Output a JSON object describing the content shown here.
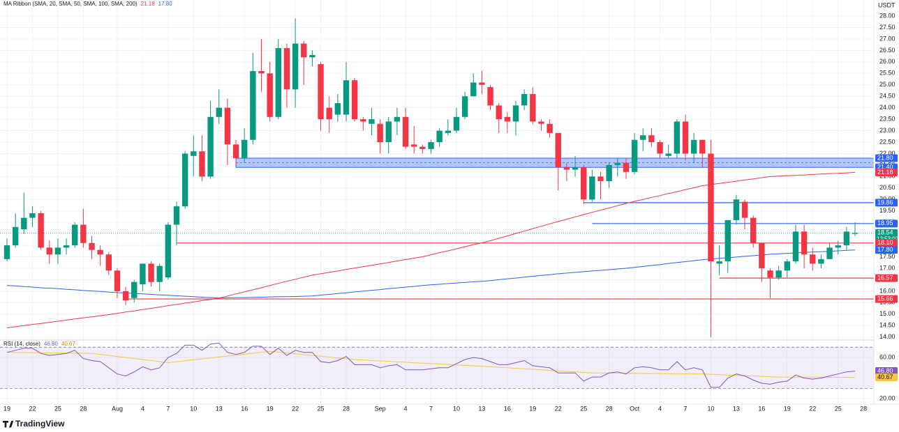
{
  "chart_data": {
    "type": "candlestick",
    "unit": "USDT",
    "up_color": "#089981",
    "down_color": "#f23645",
    "grid": true,
    "categories": [
      "19",
      null,
      null,
      "22",
      null,
      null,
      "25",
      null,
      null,
      "28",
      null,
      null,
      null,
      "Aug",
      null,
      null,
      "4",
      null,
      null,
      "7",
      null,
      null,
      "10",
      null,
      null,
      "13",
      null,
      null,
      "16",
      null,
      null,
      "19",
      null,
      null,
      "22",
      null,
      null,
      "25",
      null,
      null,
      "28",
      null,
      null,
      null,
      "Sep",
      null,
      null,
      "4",
      null,
      null,
      "7",
      null,
      null,
      "10",
      null,
      null,
      "13",
      null,
      null,
      "16",
      null,
      null,
      "19",
      null,
      null,
      "22",
      null,
      null,
      "25",
      null,
      null,
      "28",
      null,
      null,
      "Oct",
      null,
      null,
      "4",
      null,
      null,
      "7",
      null,
      null,
      "10",
      null,
      null,
      "13",
      null,
      null,
      "16",
      null,
      null,
      "19",
      null,
      null,
      "22",
      null,
      null,
      "25",
      null,
      null,
      "28"
    ],
    "ohlc": [
      [
        17.4,
        18.3,
        17.3,
        18.0
      ],
      [
        18.0,
        19.4,
        17.9,
        18.8
      ],
      [
        18.7,
        20.3,
        18.5,
        19.2
      ],
      [
        19.2,
        19.7,
        18.8,
        19.4
      ],
      [
        19.4,
        19.5,
        17.8,
        17.9
      ],
      [
        17.9,
        18.2,
        17.2,
        17.6
      ],
      [
        17.6,
        18.3,
        17.2,
        17.9
      ],
      [
        17.9,
        18.3,
        17.6,
        18.0
      ],
      [
        18.0,
        19.0,
        17.9,
        18.9
      ],
      [
        18.9,
        19.6,
        17.9,
        18.1
      ],
      [
        18.1,
        18.4,
        17.4,
        17.8
      ],
      [
        17.8,
        18.0,
        17.1,
        17.6
      ],
      [
        17.6,
        17.7,
        16.7,
        16.9
      ],
      [
        16.9,
        17.0,
        15.7,
        16.0
      ],
      [
        16.0,
        16.2,
        15.4,
        15.6
      ],
      [
        15.7,
        16.5,
        15.5,
        16.4
      ],
      [
        16.3,
        17.2,
        16.0,
        17.2
      ],
      [
        17.2,
        17.3,
        16.2,
        16.4
      ],
      [
        16.4,
        17.2,
        16.0,
        17.1
      ],
      [
        16.6,
        19.0,
        16.5,
        18.9
      ],
      [
        18.9,
        19.9,
        18.0,
        19.7
      ],
      [
        19.7,
        22.1,
        19.6,
        22.0
      ],
      [
        21.9,
        22.8,
        21.0,
        22.1
      ],
      [
        22.1,
        22.8,
        20.8,
        21.0
      ],
      [
        21.0,
        24.3,
        20.9,
        23.6
      ],
      [
        23.6,
        24.8,
        23.3,
        24.0
      ],
      [
        24.0,
        24.4,
        21.5,
        22.4
      ],
      [
        22.4,
        22.6,
        21.5,
        21.8
      ],
      [
        21.8,
        23.1,
        21.6,
        22.6
      ],
      [
        22.6,
        26.4,
        22.4,
        25.6
      ],
      [
        25.6,
        27.0,
        24.7,
        25.5
      ],
      [
        25.5,
        26.0,
        23.4,
        23.6
      ],
      [
        23.6,
        27.0,
        23.5,
        26.6
      ],
      [
        26.6,
        26.8,
        24.0,
        24.8
      ],
      [
        24.8,
        27.9,
        24.0,
        26.8
      ],
      [
        26.8,
        26.9,
        25.0,
        26.2
      ],
      [
        26.2,
        26.5,
        25.8,
        26.3
      ],
      [
        25.9,
        26.0,
        23.0,
        23.5
      ],
      [
        24.0,
        24.5,
        22.9,
        23.5
      ],
      [
        23.7,
        24.6,
        23.4,
        24.2
      ],
      [
        23.7,
        26.0,
        23.4,
        25.2
      ],
      [
        25.2,
        25.3,
        23.4,
        23.5
      ],
      [
        23.5,
        23.6,
        23.0,
        23.4
      ],
      [
        23.3,
        24.0,
        22.8,
        23.5
      ],
      [
        23.3,
        23.5,
        22.0,
        22.5
      ],
      [
        22.5,
        23.6,
        22.0,
        23.4
      ],
      [
        23.4,
        24.0,
        22.8,
        23.6
      ],
      [
        23.6,
        24.0,
        22.2,
        22.3
      ],
      [
        22.4,
        23.2,
        22.0,
        22.3
      ],
      [
        22.3,
        22.4,
        22.0,
        22.2
      ],
      [
        22.2,
        22.6,
        22.0,
        22.5
      ],
      [
        22.5,
        23.1,
        22.3,
        23.0
      ],
      [
        22.9,
        23.5,
        22.8,
        23.0
      ],
      [
        23.0,
        24.0,
        22.9,
        23.6
      ],
      [
        23.6,
        24.7,
        23.5,
        24.5
      ],
      [
        24.5,
        25.5,
        24.5,
        25.1
      ],
      [
        25.1,
        25.6,
        24.6,
        25.0
      ],
      [
        24.9,
        25.0,
        23.9,
        24.1
      ],
      [
        24.1,
        24.2,
        22.9,
        23.5
      ],
      [
        23.6,
        23.8,
        22.9,
        23.4
      ],
      [
        23.4,
        24.3,
        22.8,
        24.1
      ],
      [
        24.1,
        24.8,
        23.9,
        24.6
      ],
      [
        24.6,
        24.9,
        23.3,
        23.4
      ],
      [
        23.4,
        23.5,
        23.0,
        23.3
      ],
      [
        23.3,
        23.5,
        22.7,
        22.9
      ],
      [
        22.9,
        22.9,
        20.4,
        21.4
      ],
      [
        21.4,
        21.6,
        20.8,
        21.3
      ],
      [
        21.3,
        21.9,
        21.0,
        21.4
      ],
      [
        21.4,
        21.5,
        19.8,
        20.0
      ],
      [
        20.0,
        21.3,
        19.9,
        21.0
      ],
      [
        21.0,
        21.2,
        20.0,
        20.8
      ],
      [
        20.8,
        21.6,
        20.5,
        21.5
      ],
      [
        21.5,
        21.8,
        21.0,
        21.6
      ],
      [
        21.6,
        21.8,
        20.9,
        21.2
      ],
      [
        21.2,
        22.9,
        21.1,
        22.6
      ],
      [
        22.6,
        23.1,
        22.1,
        22.8
      ],
      [
        22.8,
        23.1,
        22.3,
        22.5
      ],
      [
        22.5,
        22.6,
        21.8,
        22.0
      ],
      [
        21.9,
        22.4,
        21.8,
        22.0
      ],
      [
        22.0,
        23.5,
        21.8,
        23.4
      ],
      [
        23.4,
        23.7,
        21.7,
        22.0
      ],
      [
        22.0,
        22.9,
        21.6,
        22.6
      ],
      [
        22.6,
        22.6,
        21.4,
        22.0
      ],
      [
        22.0,
        22.6,
        14.0,
        17.3
      ],
      [
        17.2,
        18.0,
        16.7,
        17.3
      ],
      [
        17.3,
        19.1,
        16.8,
        19.1
      ],
      [
        19.1,
        20.2,
        18.9,
        20.0
      ],
      [
        19.9,
        20.0,
        18.7,
        19.2
      ],
      [
        19.2,
        19.3,
        17.9,
        18.1
      ],
      [
        18.1,
        18.1,
        16.4,
        17.0
      ],
      [
        16.9,
        17.0,
        15.7,
        16.6
      ],
      [
        16.6,
        17.1,
        16.5,
        16.9
      ],
      [
        16.9,
        17.4,
        16.6,
        17.3
      ],
      [
        17.3,
        18.9,
        17.2,
        18.6
      ],
      [
        18.6,
        18.9,
        17.0,
        17.6
      ],
      [
        17.6,
        17.9,
        16.9,
        17.2
      ],
      [
        17.2,
        17.6,
        17.0,
        17.4
      ],
      [
        17.4,
        18.1,
        17.4,
        17.9
      ],
      [
        17.9,
        18.2,
        17.6,
        18.0
      ],
      [
        18.0,
        18.8,
        17.8,
        18.6
      ],
      [
        18.5,
        19.0,
        18.4,
        18.54
      ],
      null
    ],
    "overlays": [
      {
        "color": "#f23645",
        "values": [
          14.4,
          14.45,
          14.5,
          14.55,
          14.59,
          14.64,
          14.69,
          14.74,
          14.79,
          14.84,
          14.88,
          14.93,
          14.98,
          15.03,
          15.09,
          15.14,
          15.2,
          15.25,
          15.31,
          15.37,
          15.42,
          15.48,
          15.53,
          15.59,
          15.64,
          15.7,
          15.79,
          15.88,
          15.97,
          16.06,
          16.15,
          16.25,
          16.34,
          16.43,
          16.52,
          16.61,
          16.7,
          16.76,
          16.82,
          16.88,
          16.95,
          17.01,
          17.07,
          17.13,
          17.19,
          17.25,
          17.32,
          17.38,
          17.44,
          17.5,
          17.59,
          17.68,
          17.76,
          17.85,
          17.94,
          18.03,
          18.11,
          18.2,
          18.31,
          18.41,
          18.52,
          18.62,
          18.73,
          18.83,
          18.94,
          19.04,
          19.14,
          19.24,
          19.34,
          19.44,
          19.53,
          19.63,
          19.73,
          19.83,
          19.92,
          20.0,
          20.09,
          20.17,
          20.26,
          20.34,
          20.43,
          20.51,
          20.6,
          20.65,
          20.7,
          20.75,
          20.8,
          20.85,
          20.9,
          20.95,
          21.0,
          21.02,
          21.04,
          21.05,
          21.07,
          21.09,
          21.11,
          21.13,
          21.14,
          21.16,
          21.18,
          null
        ]
      },
      {
        "color": "#2962ff",
        "values": [
          16.25,
          16.23,
          16.2,
          16.18,
          16.15,
          16.13,
          16.11,
          16.08,
          16.06,
          16.03,
          16.01,
          15.99,
          15.96,
          15.94,
          15.92,
          15.9,
          15.88,
          15.86,
          15.84,
          15.82,
          15.8,
          15.78,
          15.76,
          15.74,
          15.72,
          15.7,
          15.71,
          15.72,
          15.72,
          15.73,
          15.74,
          15.75,
          15.76,
          15.76,
          15.77,
          15.78,
          15.79,
          15.83,
          15.86,
          15.9,
          15.93,
          15.97,
          16.0,
          16.04,
          16.07,
          16.11,
          16.14,
          16.18,
          16.21,
          16.25,
          16.28,
          16.3,
          16.33,
          16.36,
          16.38,
          16.41,
          16.43,
          16.46,
          16.5,
          16.54,
          16.57,
          16.61,
          16.65,
          16.69,
          16.72,
          16.76,
          16.79,
          16.82,
          16.85,
          16.88,
          16.91,
          16.94,
          16.97,
          17.0,
          17.04,
          17.08,
          17.12,
          17.16,
          17.21,
          17.25,
          17.29,
          17.33,
          17.37,
          17.4,
          17.43,
          17.46,
          17.49,
          17.52,
          17.55,
          17.58,
          17.61,
          17.63,
          17.65,
          17.67,
          17.69,
          17.71,
          17.72,
          17.74,
          17.76,
          17.78,
          17.8,
          null
        ]
      }
    ],
    "indicator_legend": {
      "title": "MA Ribbon (SMA, 20, SMA, 50, SMA, 100, SMA, 200)",
      "values": [
        "21.18",
        "17.80"
      ]
    },
    "ylim": [
      13.9,
      28.7
    ],
    "yticks": [
      {
        "value": 14,
        "label": "14.00"
      },
      {
        "value": 14.5,
        "label": "14.50"
      },
      {
        "value": 15,
        "label": "15.00"
      },
      {
        "value": 15.5,
        "label": "15.50"
      },
      {
        "value": 16,
        "label": "16.00"
      },
      {
        "value": 16.5,
        "label": "16.50"
      },
      {
        "value": 17,
        "label": "17.00"
      },
      {
        "value": 17.5,
        "label": "17.50"
      },
      {
        "value": 18,
        "label": "18.00"
      },
      {
        "value": 18.5,
        "label": "18.50"
      },
      {
        "value": 19,
        "label": "19.00"
      },
      {
        "value": 19.5,
        "label": "19.50"
      },
      {
        "value": 20,
        "label": "20.00"
      },
      {
        "value": 20.5,
        "label": "20.50"
      },
      {
        "value": 21,
        "label": "21.00"
      },
      {
        "value": 21.5,
        "label": "21.50"
      },
      {
        "value": 22,
        "label": "22.00"
      },
      {
        "value": 22.5,
        "label": "22.50"
      },
      {
        "value": 23,
        "label": "23.00"
      },
      {
        "value": 23.5,
        "label": "23.50"
      },
      {
        "value": 24,
        "label": "24.00"
      },
      {
        "value": 24.5,
        "label": "24.50"
      },
      {
        "value": 25,
        "label": "25.00"
      },
      {
        "value": 25.5,
        "label": "25.50"
      },
      {
        "value": 26,
        "label": "26.00"
      },
      {
        "value": 26.5,
        "label": "26.50"
      },
      {
        "value": 27,
        "label": "27.00"
      },
      {
        "value": 27.5,
        "label": "27.50"
      },
      {
        "value": 28,
        "label": "28.00"
      }
    ],
    "price_labels": [
      {
        "value": 21.8,
        "label": "21.80",
        "color": "#2962ff"
      },
      {
        "value": 21.4,
        "label": "21.40",
        "color": "#2962ff"
      },
      {
        "value": 21.18,
        "label": "21.18",
        "color": "#f23645"
      },
      {
        "value": 19.86,
        "label": "19.86",
        "color": "#2962ff"
      },
      {
        "value": 18.95,
        "label": "18.95",
        "color": "#2962ff"
      },
      {
        "value": 18.54,
        "label": "18.54",
        "color": "#089981"
      },
      {
        "value": 18.1,
        "label": "18.10",
        "color": "#f23645"
      },
      {
        "value": 17.8,
        "label": "17.80",
        "color": "#2962ff"
      },
      {
        "value": 16.57,
        "label": "16.57",
        "color": "#f23645"
      },
      {
        "value": 15.66,
        "label": "15.66",
        "color": "#f23645"
      }
    ],
    "countdown": "12:53:02",
    "rsi": {
      "title": "RSI (14, close)",
      "legend_values": [
        "46.80",
        "40.67"
      ],
      "color": "#7e57c2",
      "ma_color": "#f7c744",
      "ylim": [
        16,
        77
      ],
      "yticks": [
        {
          "value": 60,
          "label": "60.00"
        },
        {
          "value": 20,
          "label": "20.00"
        }
      ],
      "band": [
        30,
        70
      ],
      "values": [
        65,
        67,
        69,
        69,
        64,
        62,
        63,
        64,
        67,
        59,
        57,
        56,
        50,
        44,
        42,
        46,
        51,
        48,
        50,
        60,
        64,
        72,
        72,
        67,
        73,
        74,
        65,
        63,
        65,
        71,
        71,
        63,
        69,
        62,
        67,
        65,
        65,
        56,
        55,
        57,
        61,
        53,
        53,
        53,
        50,
        52,
        53,
        48,
        48,
        48,
        49,
        50,
        50,
        54,
        58,
        60,
        59,
        56,
        53,
        53,
        55,
        57,
        52,
        51,
        50,
        45,
        45,
        45,
        37,
        41,
        41,
        45,
        46,
        44,
        50,
        51,
        50,
        48,
        48,
        56,
        48,
        50,
        48,
        31,
        31,
        40,
        44,
        42,
        38,
        35,
        34,
        36,
        37,
        43,
        40,
        39,
        40,
        42,
        44,
        46,
        46.8,
        null
      ],
      "ma_values": [
        65,
        64.9,
        64.8,
        64.7,
        64.6,
        64.5,
        64.4,
        64.3,
        64.2,
        64.1,
        64,
        63,
        62,
        61,
        60,
        59,
        58,
        57,
        56,
        55,
        55.9,
        56.8,
        57.8,
        58.7,
        59.6,
        60.5,
        61.4,
        62.3,
        63.2,
        64.2,
        65.1,
        66,
        65.2,
        64.4,
        63.6,
        62.8,
        62,
        61.2,
        60.4,
        59.6,
        58.8,
        58,
        57.6,
        57.1,
        56.7,
        56.3,
        55.8,
        55.4,
        54.9,
        54.5,
        54.1,
        53.6,
        53.2,
        52.8,
        52.3,
        51.9,
        51.4,
        51,
        50.5,
        50,
        49.5,
        49,
        48.5,
        48,
        47.5,
        47,
        46.5,
        46,
        45.5,
        45,
        44.9,
        44.8,
        44.8,
        44.7,
        44.6,
        44.5,
        44.5,
        44.4,
        44.3,
        44.2,
        44.2,
        44.1,
        44.0,
        43.7,
        43.3,
        43,
        42.7,
        42.3,
        42,
        41.7,
        41.3,
        41,
        40.96,
        40.92,
        40.89,
        40.85,
        40.81,
        40.78,
        40.74,
        40.71,
        40.67,
        null
      ]
    },
    "logo": "TradingView"
  }
}
